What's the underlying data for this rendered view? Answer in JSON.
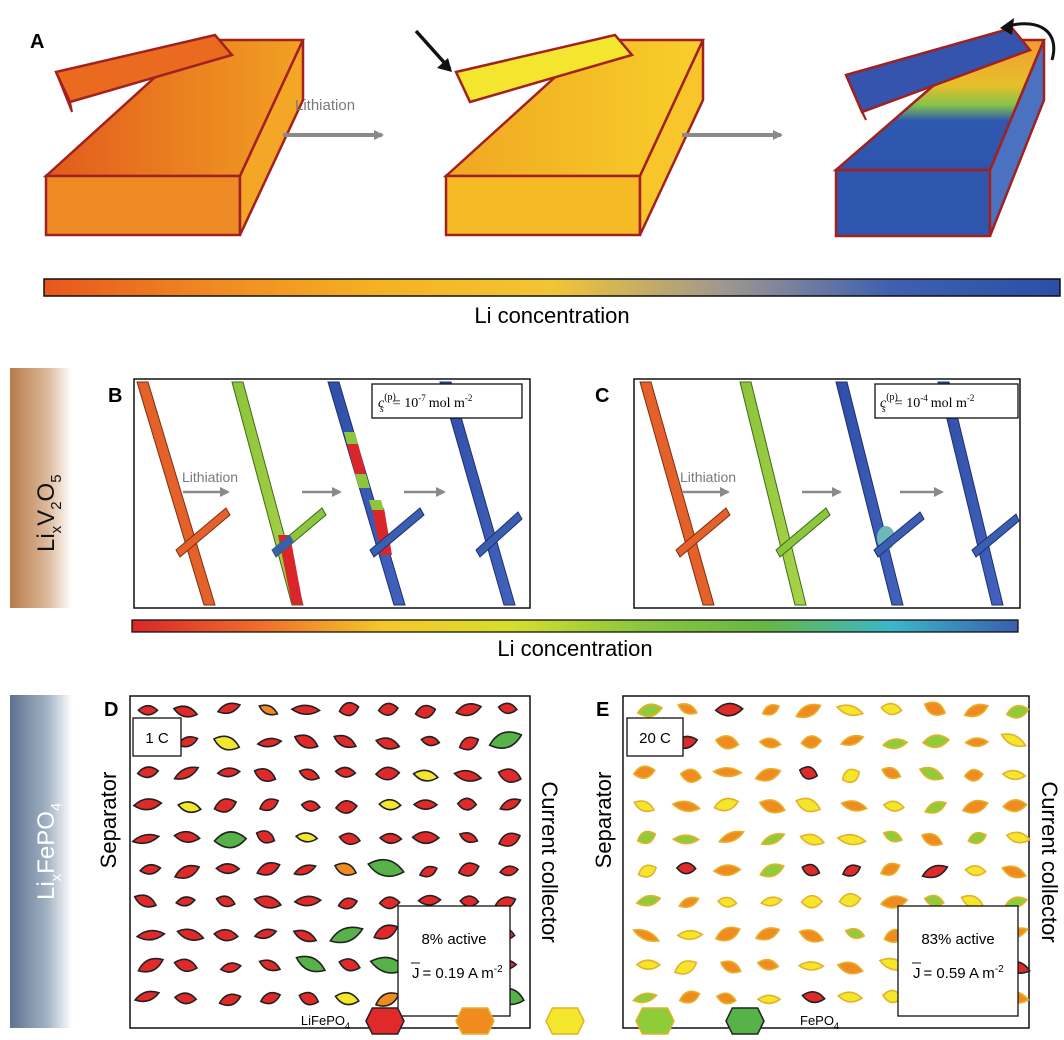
{
  "panel_a": {
    "label": "A",
    "arrow_label": "Lithiation",
    "colorbar_label": "Li concentration",
    "colorbar_colors": [
      "#e8561c",
      "#f08a22",
      "#f5b223",
      "#f2c534",
      "#a0988f",
      "#3f60b0",
      "#2b4fa8"
    ]
  },
  "side_labels": {
    "top": {
      "base": "Li",
      "sub1": "x",
      "mid": "V",
      "sub2": "2",
      "mid2": "O",
      "sub3": "5"
    },
    "bottom": {
      "base": "Li",
      "sub1": "x",
      "mid": "FePO",
      "sub2": "4"
    }
  },
  "panel_b": {
    "label": "B",
    "arrow_label": "Lithiation",
    "concentration": {
      "c": "c",
      "sup": "(p)",
      "sub": "s",
      "value": "= 10",
      "exp": "-7",
      "unit": "mol m",
      "unit_exp": "-2"
    }
  },
  "panel_c": {
    "label": "C",
    "arrow_label": "Lithiation",
    "concentration": {
      "c": "c",
      "sup": "(p)",
      "sub": "s",
      "value": "= 10",
      "exp": "-4",
      "unit": "mol m",
      "unit_exp": "-2"
    }
  },
  "middle_colorbar": {
    "label": "Li concentration",
    "colors": [
      "#d9262a",
      "#ef6d2a",
      "#f4c82a",
      "#d7de2e",
      "#8cc63f",
      "#66b844",
      "#3bb7c8",
      "#3a5fb0"
    ]
  },
  "panel_d": {
    "label": "D",
    "rate": "1 C",
    "left_label": "Separator",
    "right_label": "Current collector",
    "active": "8% active",
    "current_prefix": "J",
    "current_value": "= 0.19 A m",
    "current_exp": "-2",
    "active_fraction": 0.08
  },
  "panel_e": {
    "label": "E",
    "rate": "20 C",
    "left_label": "Separator",
    "right_label": "Current collector",
    "active": "83% active",
    "current_prefix": "J",
    "current_value": "= 0.59 A m",
    "current_exp": "-2",
    "active_fraction": 0.83
  },
  "legend": {
    "left": {
      "base": "LiFePO",
      "sub": "4"
    },
    "right": {
      "base": "FePO",
      "sub": "4"
    },
    "colors": [
      "#e02a2a",
      "#f08c1f",
      "#f4e62b",
      "#8fcc3a",
      "#57b347"
    ]
  }
}
